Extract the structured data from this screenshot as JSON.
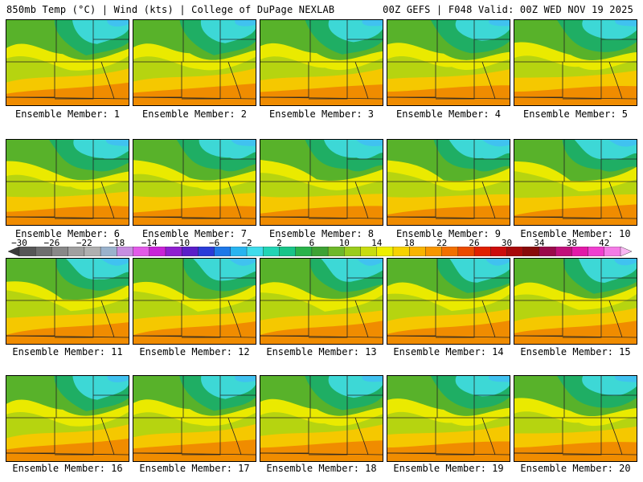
{
  "header": {
    "left": "850mb Temp (°C) | Wind (kts) | College of DuPage NEXLAB",
    "right": "00Z GEFS | F048 Valid: 00Z WED NOV 19 2025"
  },
  "members": [
    {
      "label": "Ensemble Member: 1"
    },
    {
      "label": "Ensemble Member: 2"
    },
    {
      "label": "Ensemble Member: 3"
    },
    {
      "label": "Ensemble Member: 4"
    },
    {
      "label": "Ensemble Member: 5"
    },
    {
      "label": "Ensemble Member: 6"
    },
    {
      "label": "Ensemble Member: 7"
    },
    {
      "label": "Ensemble Member: 8"
    },
    {
      "label": "Ensemble Member: 9"
    },
    {
      "label": "Ensemble Member: 10"
    },
    {
      "label": "Ensemble Member: 11"
    },
    {
      "label": "Ensemble Member: 12"
    },
    {
      "label": "Ensemble Member: 13"
    },
    {
      "label": "Ensemble Member: 14"
    },
    {
      "label": "Ensemble Member: 15"
    },
    {
      "label": "Ensemble Member: 16"
    },
    {
      "label": "Ensemble Member: 17"
    },
    {
      "label": "Ensemble Member: 18"
    },
    {
      "label": "Ensemble Member: 19"
    },
    {
      "label": "Ensemble Member: 20"
    }
  ],
  "colorbar": {
    "labels": [
      "−30",
      "−26",
      "−22",
      "−18",
      "−14",
      "−10",
      "−6",
      "−2",
      "2",
      "6",
      "10",
      "14",
      "18",
      "22",
      "26",
      "30",
      "34",
      "38",
      "42"
    ],
    "colors": [
      "#3a3a3a",
      "#565656",
      "#6e6e6e",
      "#888888",
      "#a0a0a0",
      "#b0b0b0",
      "#9ab2cc",
      "#c78ee0",
      "#e25ae8",
      "#c823d8",
      "#8f1fd0",
      "#5a1ec8",
      "#2a3cd8",
      "#1e78e8",
      "#28b4f0",
      "#40dcec",
      "#22d4b4",
      "#18c488",
      "#2ab24a",
      "#3ea234",
      "#6eb82a",
      "#9acc1c",
      "#c8dc10",
      "#eeee00",
      "#f6d200",
      "#f8b400",
      "#f89600",
      "#f27000",
      "#ea4a00",
      "#e02000",
      "#cc0c0c",
      "#a80a0a",
      "#880a0a",
      "#9a0a4a",
      "#c0107a",
      "#e21aa8",
      "#f040d0",
      "#f47ce6",
      "#f8b6f2"
    ]
  }
}
